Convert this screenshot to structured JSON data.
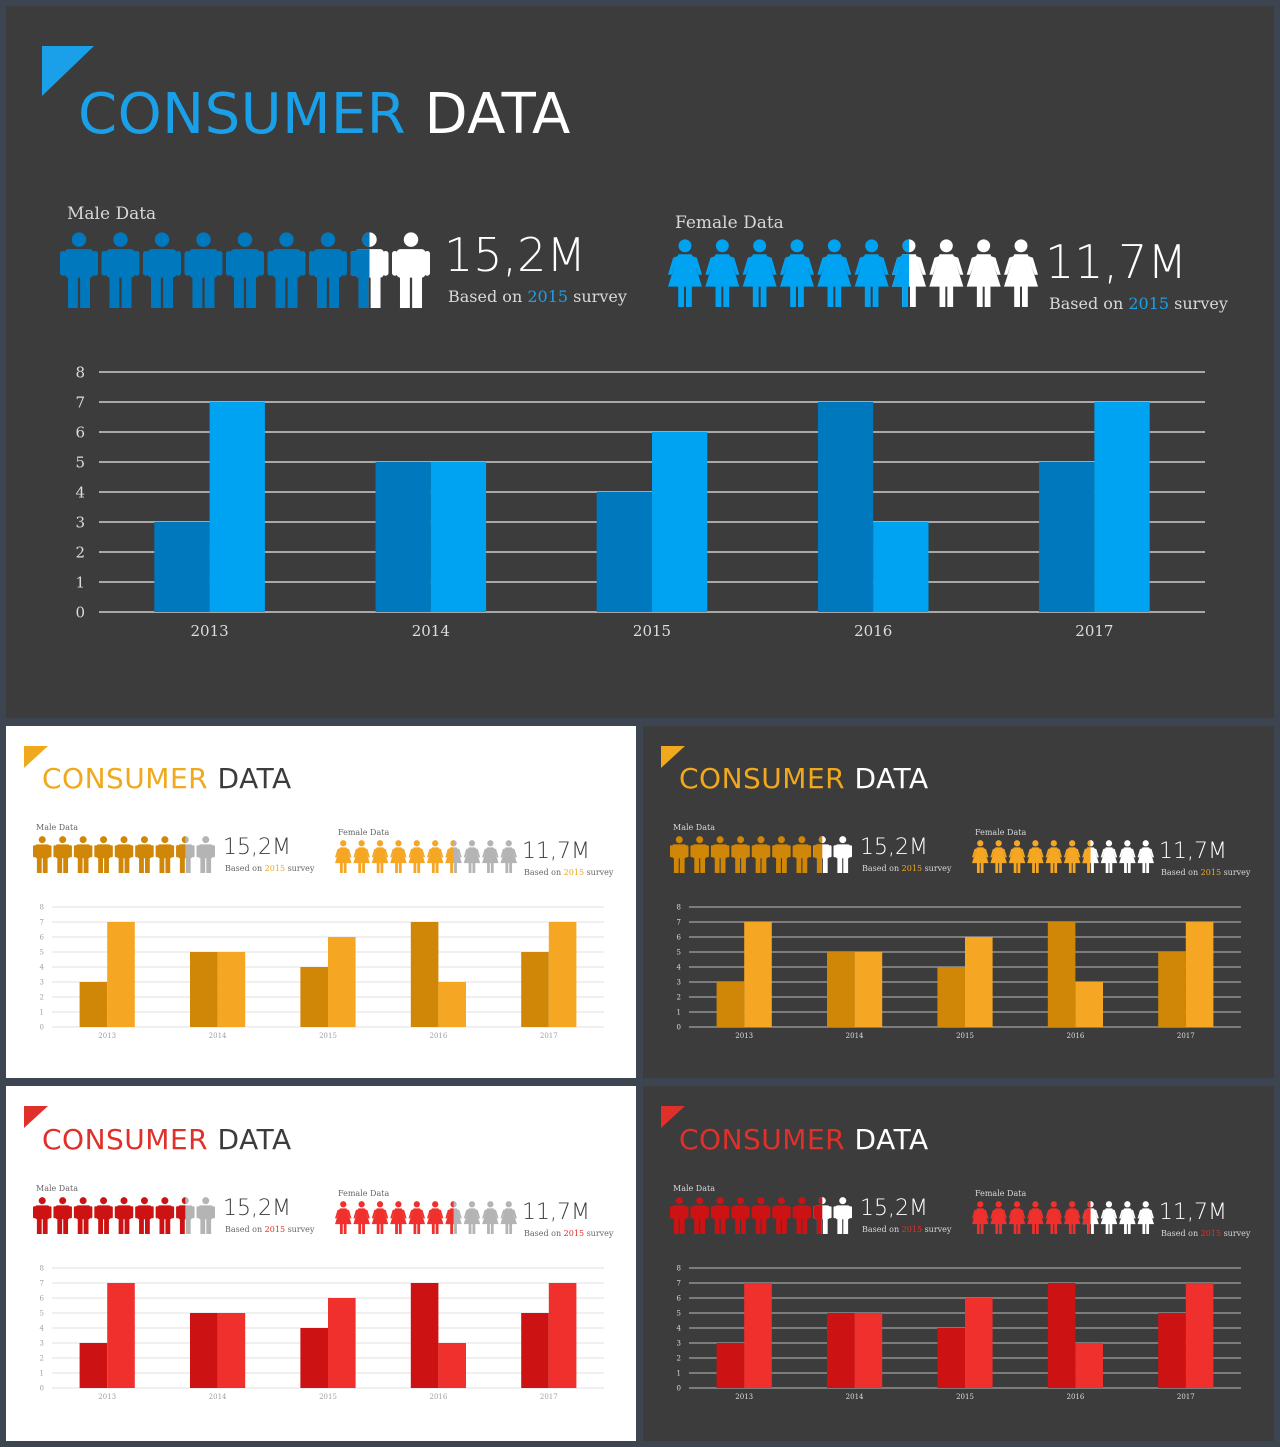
{
  "title": {
    "colored": "CONSUMER",
    "plain": "DATA"
  },
  "male": {
    "label": "Male Data",
    "value": "15,2M",
    "icon": "male-person-icon",
    "filled": 7.5,
    "total": 9
  },
  "female": {
    "label": "Female Data",
    "value": "11,7M",
    "icon": "female-person-icon",
    "filled": 6.5,
    "total": 10
  },
  "survey": {
    "prefix": "Based on",
    "year": "2015",
    "suffix": "survey"
  },
  "themes": {
    "blue": {
      "accent": "#1aa0e8",
      "bar_a": "#0078be",
      "bar_b": "#00a2f2"
    },
    "orange": {
      "accent": "#f0a81c",
      "bar_a": "#d08606",
      "bar_b": "#f5a623"
    },
    "red": {
      "accent": "#e0302a",
      "bar_a": "#cc1212",
      "bar_b": "#f0302c"
    }
  },
  "chart_data": {
    "type": "bar",
    "categories": [
      "2013",
      "2014",
      "2015",
      "2016",
      "2017"
    ],
    "series": [
      {
        "values": [
          3,
          5,
          4,
          7,
          5
        ]
      },
      {
        "values": [
          7,
          5,
          6,
          3,
          7
        ]
      }
    ],
    "yticks": [
      "0",
      "1",
      "2",
      "3",
      "4",
      "5",
      "6",
      "7",
      "8"
    ],
    "ylim": [
      0,
      8
    ],
    "grid": true
  }
}
